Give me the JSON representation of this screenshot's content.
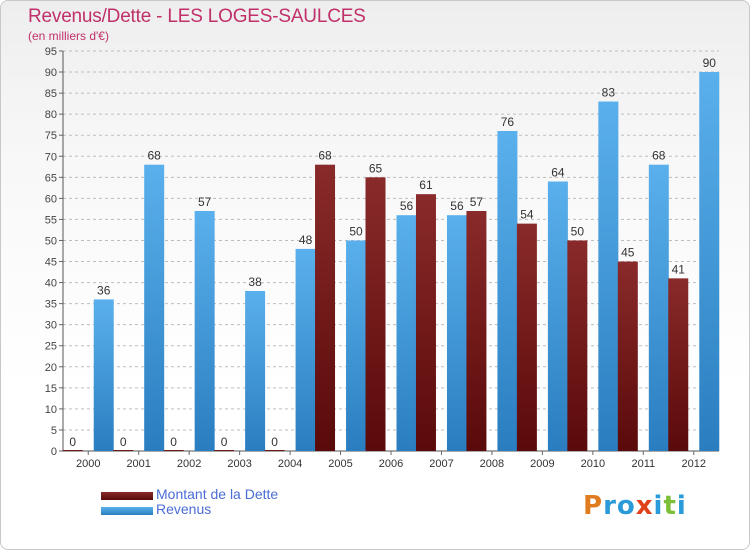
{
  "title": "Revenus/Dette - LES LOGES-SAULCES",
  "subtitle": "(en milliers d'€)",
  "logo": {
    "text": "Proxiti",
    "colors": [
      "#e07b20",
      "#2a9ad8",
      "#2a9ad8",
      "#e0401a",
      "#2a9ad8",
      "#7cc03a",
      "#2a9ad8"
    ]
  },
  "chart_data": {
    "type": "bar",
    "title": "Revenus/Dette - LES LOGES-SAULCES",
    "ylabel": "",
    "xlabel": "",
    "categories": [
      "2000",
      "2001",
      "2002",
      "2003",
      "2004",
      "2005",
      "2006",
      "2007",
      "2008",
      "2009",
      "2010",
      "2011",
      "2012"
    ],
    "series": [
      {
        "name": "Montant de la Dette",
        "color": "#6d1a1a",
        "values": [
          0,
          0,
          0,
          0,
          0,
          68,
          65,
          61,
          57,
          54,
          50,
          45,
          41
        ]
      },
      {
        "name": "Revenus",
        "color": "#4aa0e0",
        "values": [
          36,
          68,
          57,
          38,
          48,
          50,
          56,
          56,
          76,
          64,
          83,
          68,
          90
        ]
      }
    ],
    "ylim": [
      0,
      95
    ],
    "yticks": [
      0,
      5,
      10,
      15,
      20,
      25,
      30,
      35,
      40,
      45,
      50,
      55,
      60,
      65,
      70,
      75,
      80,
      85,
      90,
      95
    ],
    "grid": "horizontal dashed",
    "legend_position": "bottom-left"
  }
}
